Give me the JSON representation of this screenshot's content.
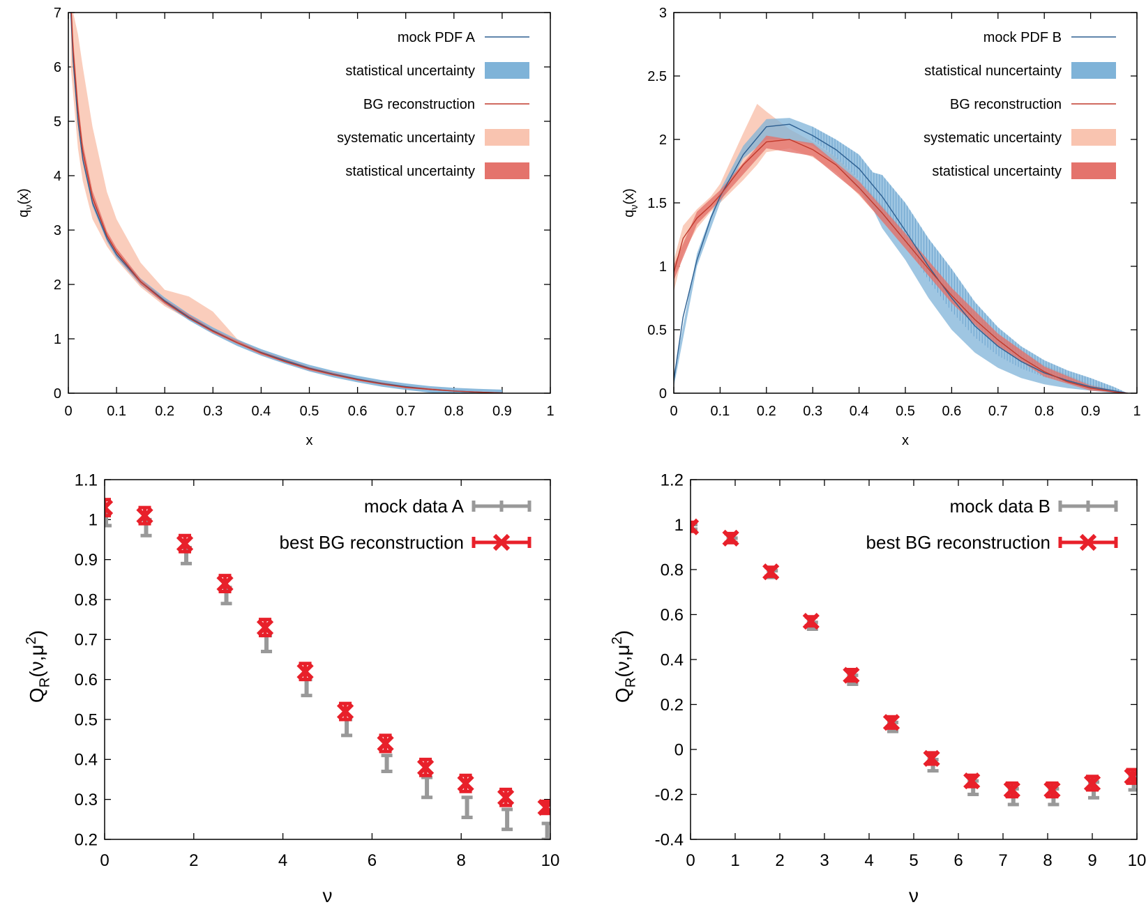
{
  "colors": {
    "mock_line": "#2d5f91",
    "stat_blue": "#7fb3d8",
    "stat_blue_dark": "#3c84bd",
    "bg_line": "#c0392b",
    "sys_band": "#f9c4b0",
    "stat_red": "#e4736c",
    "data_gray": "#999999",
    "recon_red": "#e8202a"
  },
  "chart_data": [
    {
      "type": "line",
      "xlabel": "x",
      "ylabel_main": "q",
      "ylabel_sub": "ν",
      "ylabel_tail": "(x)",
      "xlim": [
        0,
        1
      ],
      "ylim": [
        0,
        7
      ],
      "xticks": [
        "0",
        "0.1",
        "0.2",
        "0.3",
        "0.4",
        "0.5",
        "0.6",
        "0.7",
        "0.8",
        "0.9",
        "1"
      ],
      "yticks": [
        "0",
        "1",
        "2",
        "3",
        "4",
        "5",
        "6",
        "7"
      ],
      "legend": [
        "mock PDF A",
        "statistical uncertainty",
        "BG reconstruction",
        "systematic uncertainty",
        "statistical uncertainty"
      ],
      "legend_placement": "top-right",
      "series": [
        {
          "name": "mock PDF A",
          "x": [
            0.005,
            0.01,
            0.02,
            0.03,
            0.05,
            0.08,
            0.1,
            0.15,
            0.2,
            0.25,
            0.3,
            0.35,
            0.4,
            0.45,
            0.5,
            0.55,
            0.6,
            0.65,
            0.7,
            0.75,
            0.8,
            0.85,
            0.9
          ],
          "y": [
            7.0,
            6.1,
            5.0,
            4.3,
            3.5,
            2.85,
            2.55,
            2.05,
            1.7,
            1.4,
            1.15,
            0.93,
            0.75,
            0.6,
            0.46,
            0.35,
            0.26,
            0.18,
            0.12,
            0.07,
            0.04,
            0.02,
            0.005
          ]
        },
        {
          "name": "BG reconstruction",
          "x": [
            0.005,
            0.01,
            0.02,
            0.03,
            0.05,
            0.08,
            0.1,
            0.15,
            0.2,
            0.25,
            0.3,
            0.35,
            0.4,
            0.45,
            0.5,
            0.55,
            0.6,
            0.65,
            0.7,
            0.75,
            0.8,
            0.85,
            0.9
          ],
          "y": [
            7.2,
            6.3,
            5.2,
            4.45,
            3.6,
            2.9,
            2.6,
            2.05,
            1.68,
            1.38,
            1.14,
            0.93,
            0.74,
            0.58,
            0.45,
            0.34,
            0.25,
            0.17,
            0.11,
            0.07,
            0.04,
            0.02,
            0.005
          ]
        }
      ],
      "sys_band": {
        "x": [
          0.005,
          0.01,
          0.02,
          0.03,
          0.05,
          0.08,
          0.1,
          0.15,
          0.2,
          0.25,
          0.3,
          0.35,
          0.4,
          0.45,
          0.5,
          0.6,
          0.7,
          0.8,
          0.9
        ],
        "lo": [
          6.0,
          5.5,
          4.5,
          3.9,
          3.2,
          2.7,
          2.45,
          1.95,
          1.6,
          1.35,
          1.1,
          0.9,
          0.72,
          0.56,
          0.43,
          0.24,
          0.1,
          0.03,
          0.0
        ],
        "hi": [
          7.3,
          7.0,
          6.6,
          6.0,
          4.9,
          3.7,
          3.2,
          2.4,
          1.9,
          1.78,
          1.5,
          1.0,
          0.78,
          0.62,
          0.48,
          0.27,
          0.12,
          0.05,
          0.01
        ]
      },
      "stat_band": {
        "x": [
          0.005,
          0.01,
          0.02,
          0.03,
          0.05,
          0.08,
          0.1,
          0.15,
          0.2,
          0.3,
          0.4,
          0.5,
          0.6,
          0.7,
          0.8,
          0.9
        ],
        "half": [
          0.25,
          0.22,
          0.18,
          0.15,
          0.12,
          0.08,
          0.07,
          0.05,
          0.04,
          0.03,
          0.03,
          0.03,
          0.02,
          0.02,
          0.01,
          0.005
        ]
      }
    },
    {
      "type": "line",
      "xlabel": "x",
      "ylabel_main": "q",
      "ylabel_sub": "ν",
      "ylabel_tail": "(x)",
      "xlim": [
        0,
        1
      ],
      "ylim": [
        0,
        3
      ],
      "xticks": [
        "0",
        "0.1",
        "0.2",
        "0.3",
        "0.4",
        "0.5",
        "0.6",
        "0.7",
        "0.8",
        "0.9",
        "1"
      ],
      "yticks": [
        "0",
        "0.5",
        "1",
        "1.5",
        "2",
        "2.5",
        "3"
      ],
      "legend": [
        "mock PDF B",
        "statistical nuncertainty",
        "BG reconstruction",
        "systematic uncertainty",
        "statistical uncertainty"
      ],
      "legend_placement": "top-right",
      "series": [
        {
          "name": "mock PDF B",
          "x": [
            0.0,
            0.02,
            0.05,
            0.08,
            0.1,
            0.15,
            0.2,
            0.25,
            0.3,
            0.35,
            0.4,
            0.45,
            0.5,
            0.55,
            0.6,
            0.65,
            0.7,
            0.75,
            0.8,
            0.85,
            0.9,
            0.95,
            0.98
          ],
          "y": [
            0.1,
            0.6,
            1.05,
            1.38,
            1.55,
            1.88,
            2.1,
            2.12,
            2.03,
            1.92,
            1.77,
            1.55,
            1.28,
            1.0,
            0.75,
            0.53,
            0.37,
            0.25,
            0.16,
            0.1,
            0.05,
            0.02,
            0.0
          ]
        },
        {
          "name": "BG reconstruction",
          "x": [
            0.0,
            0.02,
            0.05,
            0.08,
            0.1,
            0.15,
            0.2,
            0.25,
            0.3,
            0.35,
            0.4,
            0.45,
            0.5,
            0.55,
            0.6,
            0.65,
            0.7,
            0.75,
            0.8,
            0.85,
            0.9,
            0.95,
            0.98
          ],
          "y": [
            0.95,
            1.22,
            1.38,
            1.48,
            1.56,
            1.8,
            1.98,
            2.0,
            1.92,
            1.8,
            1.62,
            1.42,
            1.2,
            0.98,
            0.77,
            0.58,
            0.42,
            0.28,
            0.17,
            0.09,
            0.04,
            0.01,
            0.0
          ]
        }
      ],
      "sys_band": {
        "x": [
          0.0,
          0.02,
          0.05,
          0.08,
          0.1,
          0.15,
          0.18,
          0.2,
          0.25,
          0.3,
          0.35,
          0.4,
          0.45,
          0.5,
          0.6,
          0.7,
          0.8,
          0.9,
          0.98
        ],
        "lo": [
          0.8,
          1.1,
          1.3,
          1.43,
          1.5,
          1.68,
          1.8,
          1.9,
          1.93,
          1.86,
          1.74,
          1.56,
          1.36,
          1.14,
          0.72,
          0.38,
          0.15,
          0.03,
          0.0
        ],
        "hi": [
          1.05,
          1.32,
          1.45,
          1.55,
          1.65,
          2.05,
          2.28,
          2.22,
          2.08,
          1.98,
          1.86,
          1.68,
          1.48,
          1.26,
          0.82,
          0.46,
          0.22,
          0.07,
          0.0
        ]
      },
      "stat_band": {
        "x": [
          0.0,
          0.05,
          0.1,
          0.2,
          0.3,
          0.4,
          0.5,
          0.6,
          0.7,
          0.8,
          0.9,
          0.98
        ],
        "half": [
          0.06,
          0.05,
          0.04,
          0.05,
          0.05,
          0.05,
          0.06,
          0.06,
          0.05,
          0.04,
          0.02,
          0.0
        ]
      },
      "blue_band": {
        "x": [
          0.0,
          0.05,
          0.1,
          0.15,
          0.2,
          0.25,
          0.3,
          0.35,
          0.4,
          0.43,
          0.45,
          0.5,
          0.55,
          0.6,
          0.65,
          0.7,
          0.75,
          0.8,
          0.85,
          0.9,
          0.95,
          0.98
        ],
        "lo": [
          0.05,
          1.0,
          1.5,
          1.85,
          2.0,
          2.0,
          1.95,
          1.8,
          1.6,
          1.45,
          1.3,
          1.05,
          0.75,
          0.5,
          0.32,
          0.2,
          0.12,
          0.07,
          0.04,
          0.02,
          0.0,
          0.0
        ],
        "hi": [
          0.15,
          1.1,
          1.6,
          1.95,
          2.16,
          2.17,
          2.1,
          2.0,
          1.88,
          1.74,
          1.72,
          1.5,
          1.22,
          0.98,
          0.72,
          0.52,
          0.37,
          0.26,
          0.18,
          0.12,
          0.05,
          0.0
        ]
      }
    },
    {
      "type": "scatter",
      "xlabel": "ν",
      "ylabel_main": "Q",
      "ylabel_sub": "R",
      "ylabel_tail": "(ν,μ",
      "ylabel_sup": "2",
      "ylabel_end": ")",
      "xlim": [
        0,
        10
      ],
      "ylim": [
        0.2,
        1.1
      ],
      "xticks": [
        "0",
        "2",
        "4",
        "6",
        "8",
        "10"
      ],
      "yticks": [
        "0.2",
        "0.3",
        "0.4",
        "0.5",
        "0.6",
        "0.7",
        "0.8",
        "0.9",
        "1",
        "1.1"
      ],
      "legend": [
        "mock data A",
        "best BG reconstruction"
      ],
      "legend_placement": "top-right",
      "series": [
        {
          "name": "mock data A",
          "x": [
            0,
            0.9,
            1.8,
            2.7,
            3.6,
            4.5,
            5.4,
            6.3,
            7.2,
            8.1,
            9.0,
            9.9
          ],
          "y": [
            1.0,
            0.98,
            0.91,
            0.81,
            0.69,
            0.58,
            0.48,
            0.39,
            0.33,
            0.28,
            0.25,
            0.22
          ],
          "err": [
            0.015,
            0.02,
            0.02,
            0.02,
            0.02,
            0.02,
            0.02,
            0.02,
            0.025,
            0.025,
            0.025,
            0.02
          ]
        },
        {
          "name": "best BG reconstruction",
          "x": [
            0,
            0.9,
            1.8,
            2.7,
            3.6,
            4.5,
            5.4,
            6.3,
            7.2,
            8.1,
            9.0,
            9.9
          ],
          "y": [
            1.03,
            1.01,
            0.94,
            0.84,
            0.73,
            0.62,
            0.52,
            0.44,
            0.38,
            0.34,
            0.305,
            0.28
          ],
          "err": [
            0.02,
            0.02,
            0.02,
            0.02,
            0.02,
            0.02,
            0.02,
            0.02,
            0.02,
            0.02,
            0.02,
            0.015
          ]
        }
      ]
    },
    {
      "type": "scatter",
      "xlabel": "ν",
      "ylabel_main": "Q",
      "ylabel_sub": "R",
      "ylabel_tail": "(ν,μ",
      "ylabel_sup": "2",
      "ylabel_end": ")",
      "xlim": [
        0,
        10
      ],
      "ylim": [
        -0.4,
        1.2
      ],
      "xticks": [
        "0",
        "1",
        "2",
        "3",
        "4",
        "5",
        "6",
        "7",
        "8",
        "9",
        "10"
      ],
      "yticks": [
        "-0.4",
        "-0.2",
        "0",
        "0.2",
        "0.4",
        "0.6",
        "0.8",
        "1",
        "1.2"
      ],
      "legend": [
        "mock data B",
        "best BG reconstruction"
      ],
      "legend_placement": "top-right",
      "series": [
        {
          "name": "mock data B",
          "x": [
            0,
            0.9,
            1.8,
            2.7,
            3.6,
            4.5,
            5.4,
            6.3,
            7.2,
            8.1,
            9.0,
            9.9
          ],
          "y": [
            0.99,
            0.93,
            0.78,
            0.55,
            0.31,
            0.1,
            -0.07,
            -0.17,
            -0.21,
            -0.21,
            -0.18,
            -0.15
          ],
          "err": [
            0.01,
            0.01,
            0.015,
            0.015,
            0.02,
            0.02,
            0.025,
            0.03,
            0.035,
            0.035,
            0.035,
            0.03
          ]
        },
        {
          "name": "best BG reconstruction",
          "x": [
            0,
            0.9,
            1.8,
            2.7,
            3.6,
            4.5,
            5.4,
            6.3,
            7.2,
            8.1,
            9.0,
            9.9
          ],
          "y": [
            0.99,
            0.94,
            0.79,
            0.57,
            0.33,
            0.12,
            -0.04,
            -0.14,
            -0.18,
            -0.18,
            -0.15,
            -0.12
          ],
          "err": [
            0.02,
            0.02,
            0.02,
            0.02,
            0.025,
            0.025,
            0.025,
            0.025,
            0.03,
            0.03,
            0.03,
            0.03
          ]
        }
      ]
    }
  ]
}
